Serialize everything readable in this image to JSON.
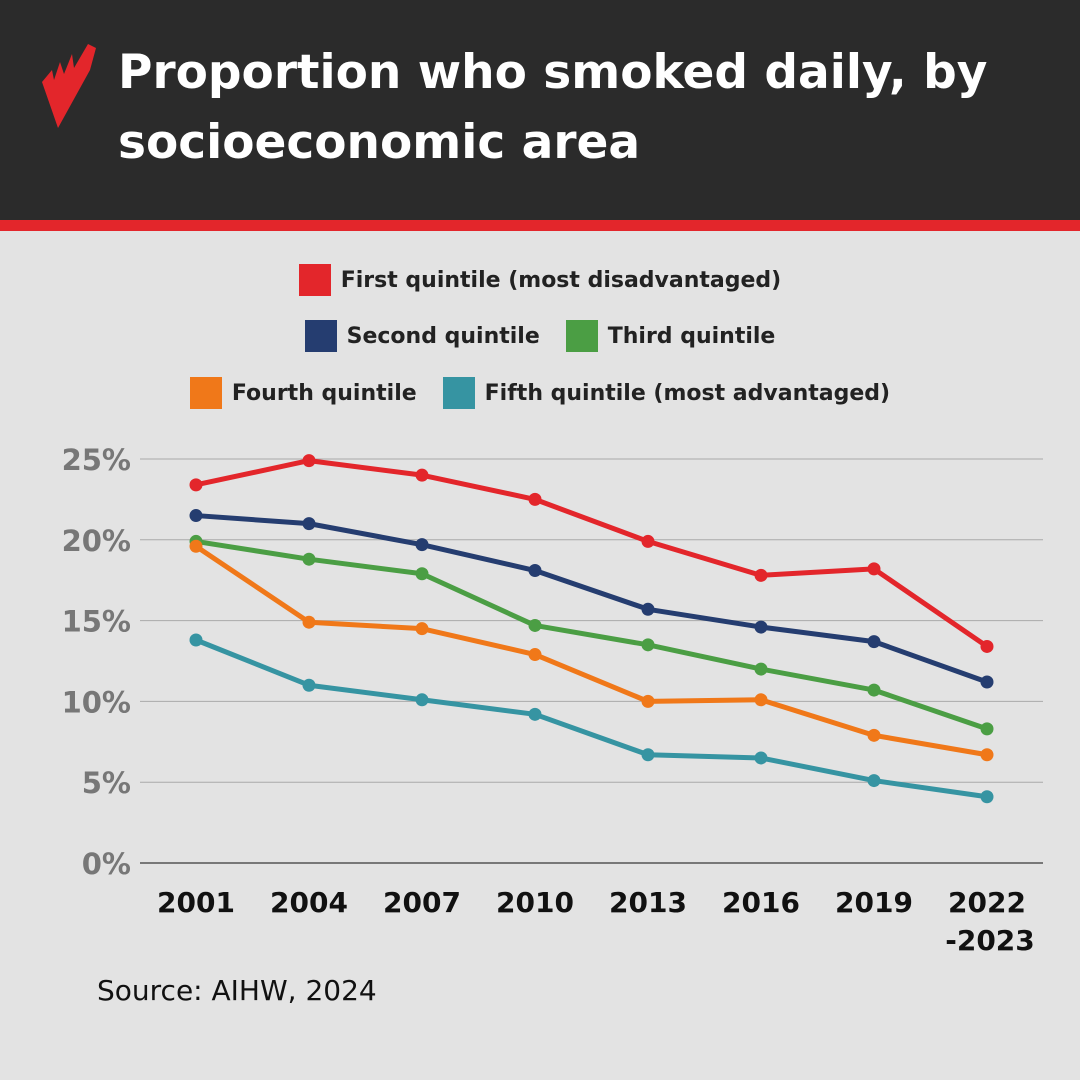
{
  "header": {
    "title": "Proportion who smoked daily, by socioeconomic area"
  },
  "source": "Source: AIHW, 2024",
  "chart_data": {
    "type": "line",
    "title": "Proportion who smoked daily, by socioeconomic area",
    "categories": [
      "2001",
      "2004",
      "2007",
      "2010",
      "2013",
      "2016",
      "2019",
      "2022\n-2023"
    ],
    "category_lines": [
      [
        "2001"
      ],
      [
        "2004"
      ],
      [
        "2007"
      ],
      [
        "2010"
      ],
      [
        "2013"
      ],
      [
        "2016"
      ],
      [
        "2019"
      ],
      [
        "2022",
        "-2023"
      ]
    ],
    "ylim": [
      0,
      25
    ],
    "yticks": [
      "0%",
      "5%",
      "10%",
      "15%",
      "20%",
      "25%"
    ],
    "grid": true,
    "legend_placement": "top",
    "series": [
      {
        "name": "First quintile (most disadvantaged)",
        "color": "#e3262b",
        "values": [
          23.4,
          24.9,
          24.0,
          22.5,
          19.9,
          17.8,
          18.2,
          13.4
        ]
      },
      {
        "name": "Second quintile",
        "color": "#253d70",
        "values": [
          21.5,
          21.0,
          19.7,
          18.1,
          15.7,
          14.6,
          13.7,
          11.2
        ]
      },
      {
        "name": "Third quintile",
        "color": "#4b9e44",
        "values": [
          19.9,
          18.8,
          17.9,
          14.7,
          13.5,
          12.0,
          10.7,
          8.3
        ]
      },
      {
        "name": "Fourth quintile",
        "color": "#f07819",
        "values": [
          19.6,
          14.9,
          14.5,
          12.9,
          10.0,
          10.1,
          7.9,
          6.7
        ]
      },
      {
        "name": "Fifth quintile (most advantaged)",
        "color": "#3694a2",
        "values": [
          13.8,
          11.0,
          10.1,
          9.2,
          6.7,
          6.5,
          5.1,
          4.1
        ]
      }
    ]
  }
}
